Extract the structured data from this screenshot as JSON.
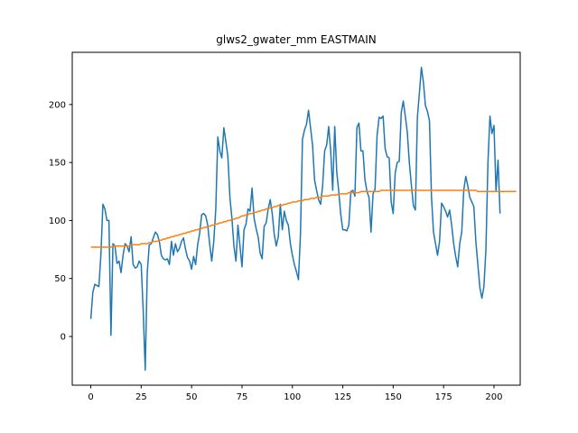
{
  "chart_data": {
    "type": "line",
    "title": "glws2_gwater_mm EASTMAIN",
    "xlabel": "",
    "ylabel": "",
    "xlim": [
      -9.2,
      213
    ],
    "ylim": [
      -42,
      245
    ],
    "x_ticks": [
      0,
      25,
      50,
      75,
      100,
      125,
      150,
      175,
      200
    ],
    "y_ticks": [
      0,
      50,
      100,
      150,
      200
    ],
    "grid": false,
    "series": [
      {
        "color": "#1f77b4",
        "values": [
          15,
          38,
          45,
          44,
          43,
          70,
          114,
          110,
          100,
          100,
          1,
          80,
          78,
          63,
          65,
          55,
          70,
          80,
          78,
          73,
          86,
          62,
          59,
          60,
          65,
          62,
          22,
          -29,
          55,
          79,
          80,
          85,
          90,
          88,
          82,
          70,
          67,
          66,
          67,
          62,
          82,
          70,
          80,
          73,
          76,
          82,
          85,
          75,
          68,
          65,
          58,
          69,
          62,
          79,
          89,
          105,
          106,
          104,
          96,
          79,
          65,
          82,
          110,
          172,
          160,
          154,
          180,
          168,
          155,
          120,
          102,
          78,
          65,
          96,
          78,
          60,
          92,
          97,
          110,
          108,
          128,
          102,
          93,
          86,
          72,
          67,
          95,
          98,
          110,
          118,
          106,
          88,
          78,
          86,
          114,
          92,
          108,
          100,
          96,
          80,
          70,
          62,
          56,
          49,
          88,
          170,
          178,
          183,
          195,
          180,
          165,
          135,
          126,
          118,
          114,
          130,
          160,
          165,
          181,
          160,
          126,
          181,
          142,
          125,
          105,
          92,
          92,
          91,
          96,
          125,
          126,
          121,
          180,
          184,
          160,
          160,
          135,
          125,
          120,
          90,
          123,
          127,
          173,
          189,
          188,
          190,
          162,
          155,
          154,
          116,
          106,
          141,
          150,
          151,
          193,
          203,
          190,
          176,
          150,
          131,
          113,
          109,
          189,
          210,
          232,
          219,
          199,
          194,
          186,
          120,
          90,
          80,
          70,
          82,
          115,
          112,
          108,
          103,
          109,
          96,
          80,
          69,
          60,
          80,
          90,
          126,
          138,
          130,
          120,
          116,
          112,
          82,
          62,
          42,
          33,
          43,
          75,
          150,
          190,
          175,
          182,
          125,
          152,
          106
        ]
      },
      {
        "color": "#ff7f0e",
        "values": [
          77,
          77,
          77,
          77,
          77,
          77,
          77,
          77,
          77,
          77,
          77,
          78,
          78,
          78,
          78,
          78,
          78,
          78,
          78,
          78,
          79,
          79,
          79,
          79,
          79,
          80,
          80,
          80,
          80,
          81,
          81,
          82,
          82,
          82,
          83,
          83,
          84,
          84,
          85,
          85,
          86,
          86,
          87,
          87,
          88,
          88,
          89,
          89,
          90,
          90,
          91,
          91,
          92,
          92,
          93,
          93,
          94,
          94,
          95,
          95,
          96,
          96,
          97,
          97,
          98,
          98,
          99,
          99,
          100,
          100,
          101,
          101,
          102,
          102,
          103,
          104,
          104,
          105,
          105,
          106,
          106,
          107,
          107,
          108,
          108,
          109,
          109,
          110,
          110,
          111,
          111,
          112,
          112,
          113,
          113,
          113,
          114,
          114,
          115,
          115,
          116,
          116,
          116,
          117,
          117,
          117,
          118,
          118,
          118,
          119,
          119,
          119,
          120,
          120,
          120,
          121,
          121,
          121,
          121,
          122,
          122,
          122,
          122,
          123,
          123,
          123,
          123,
          123,
          124,
          124,
          124,
          124,
          124,
          124,
          125,
          125,
          125,
          125,
          125,
          125,
          125,
          125,
          125,
          125,
          126,
          126,
          126,
          126,
          126,
          126,
          126,
          126,
          126,
          126,
          126,
          126,
          126,
          126,
          126,
          126,
          126,
          126,
          126,
          126,
          126,
          126,
          126,
          126,
          126,
          126,
          126,
          126,
          126,
          126,
          126,
          126,
          126,
          126,
          126,
          126,
          126,
          126,
          126,
          126,
          126,
          126,
          126,
          126,
          126,
          126,
          126,
          126,
          125,
          125,
          125,
          125,
          125,
          125,
          125,
          125,
          125,
          125,
          125,
          125,
          125,
          125,
          125,
          125,
          125,
          125,
          125,
          125
        ]
      }
    ]
  }
}
